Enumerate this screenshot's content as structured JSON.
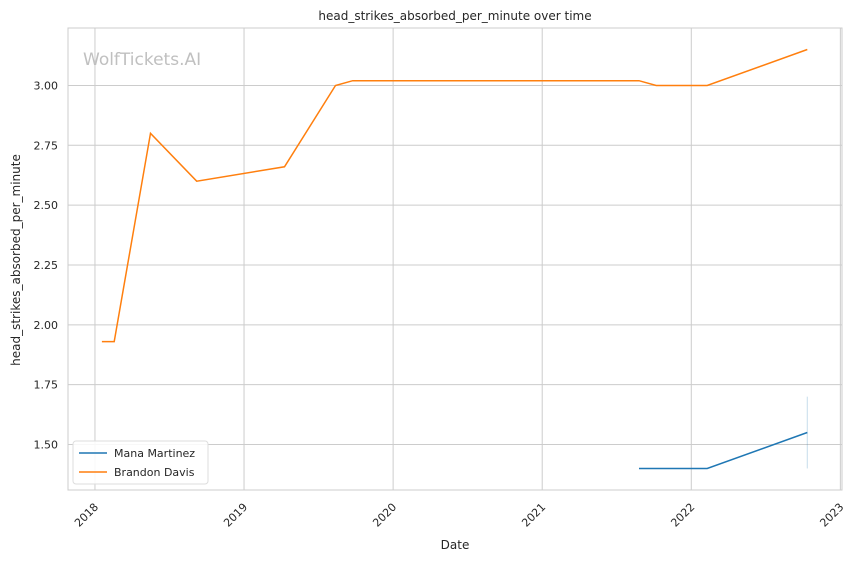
{
  "watermark": "WolfTickets.AI",
  "chart_data": {
    "type": "line",
    "title": "head_strikes_absorbed_per_minute over time",
    "xlabel": "Date",
    "ylabel": "head_strikes_absorbed_per_minute",
    "xlim": [
      "2017-10-27",
      "2023-01-05"
    ],
    "ylim": [
      1.31,
      3.24
    ],
    "grid": true,
    "legend_position": "lower-left",
    "x_ticks": [
      "2018",
      "2019",
      "2020",
      "2021",
      "2022",
      "2023"
    ],
    "y_ticks": [
      "1.50",
      "1.75",
      "2.00",
      "2.25",
      "2.50",
      "2.75",
      "3.00"
    ],
    "series": [
      {
        "name": "Mana Martinez",
        "color": "#1f77b4",
        "x": [
          "2021-08-26",
          "2022-02-09",
          "2022-10-12"
        ],
        "y": [
          1.4,
          1.4,
          1.55
        ],
        "error_band": {
          "x": "2022-10-12",
          "low": 1.4,
          "high": 1.7
        }
      },
      {
        "name": "Brandon Davis",
        "color": "#ff7f0e",
        "x": [
          "2018-01-18",
          "2018-02-17",
          "2018-05-17",
          "2018-09-07",
          "2019-04-10",
          "2019-08-13",
          "2019-09-24",
          "2021-08-26",
          "2021-10-07",
          "2022-02-09",
          "2022-10-12"
        ],
        "y": [
          1.93,
          1.93,
          2.8,
          2.6,
          2.66,
          3.0,
          3.02,
          3.02,
          3.0,
          3.0,
          3.15
        ]
      }
    ]
  }
}
